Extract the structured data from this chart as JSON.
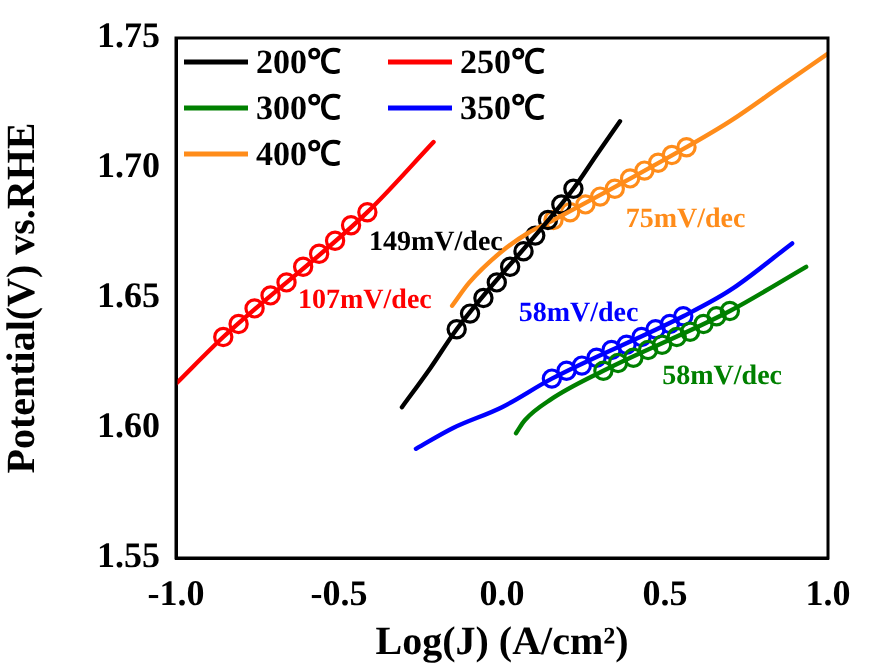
{
  "chart_data": {
    "type": "line",
    "xlabel": "Log(J) (A/cm²)",
    "ylabel": "Potential(V) vs.RHE",
    "xlim": [
      -1,
      1
    ],
    "ylim": [
      1.55,
      1.75
    ],
    "xticks": [
      {
        "value": -1,
        "label": "-1.0"
      },
      {
        "value": -0.5,
        "label": "-0.5"
      },
      {
        "value": 0,
        "label": "0.0"
      },
      {
        "value": 0.5,
        "label": "0.5"
      },
      {
        "value": 1,
        "label": "1.0"
      }
    ],
    "yticks": [
      {
        "value": 1.55,
        "label": "1.55"
      },
      {
        "value": 1.6,
        "label": "1.60"
      },
      {
        "value": 1.65,
        "label": "1.65"
      },
      {
        "value": 1.7,
        "label": "1.70"
      },
      {
        "value": 1.75,
        "label": "1.75"
      }
    ],
    "grid": false,
    "legend": "top left",
    "series": [
      {
        "name": "200℃",
        "marker": "none",
        "color": "#000000",
        "x": [
          -0.307,
          -0.22,
          -0.139,
          0.219,
          0.29,
          0.362
        ],
        "values": [
          1.608,
          1.623,
          1.638,
          1.692,
          1.705,
          1.718
        ]
      },
      {
        "name": "250℃",
        "marker": "none",
        "color": "#ff0000",
        "x": [
          -1,
          -0.855,
          -0.413,
          -0.21
        ],
        "values": [
          1.617,
          1.635,
          1.683,
          1.71
        ]
      },
      {
        "name": "300℃",
        "marker": "none",
        "color": "#008000",
        "x": [
          0.043,
          0.07,
          0.15,
          0.311,
          0.699,
          0.933
        ],
        "values": [
          1.598,
          1.603,
          1.611,
          1.622,
          1.645,
          1.662
        ]
      },
      {
        "name": "350℃",
        "marker": "none",
        "color": "#0000ff",
        "x": [
          -0.264,
          -0.15,
          0,
          0.153,
          0.556,
          0.7,
          0.89
        ],
        "values": [
          1.592,
          1.6,
          1.608,
          1.619,
          1.643,
          1.653,
          1.671
        ]
      },
      {
        "name": "400℃",
        "marker": "none",
        "color": "#ff8c1a",
        "x": [
          -0.153,
          -0.1,
          0,
          0.08,
          0.158,
          0.566,
          0.7,
          0.85,
          1
        ],
        "values": [
          1.647,
          1.656,
          1.668,
          1.675,
          1.68,
          1.708,
          1.718,
          1.731,
          1.744
        ]
      },
      {
        "name": "149mV/dec",
        "type": "scatter",
        "marker": "circle",
        "color": "#000000",
        "x": [
          -0.139,
          -0.098,
          -0.057,
          -0.016,
          0.025,
          0.066,
          0.102,
          0.141,
          0.182,
          0.219
        ],
        "values": [
          1.638,
          1.644,
          1.65,
          1.656,
          1.662,
          1.668,
          1.674,
          1.68,
          1.686,
          1.692
        ]
      },
      {
        "name": "107mV/dec",
        "type": "scatter",
        "marker": "circle",
        "color": "#ff0000",
        "x": [
          -0.855,
          -0.808,
          -0.759,
          -0.71,
          -0.661,
          -0.61,
          -0.561,
          -0.512,
          -0.463,
          -0.413
        ],
        "values": [
          1.635,
          1.64,
          1.646,
          1.651,
          1.656,
          1.662,
          1.667,
          1.672,
          1.678,
          1.683
        ]
      },
      {
        "name": "58mV/dec",
        "type": "scatter",
        "marker": "circle",
        "color": "#008000",
        "x": [
          0.311,
          0.356,
          0.403,
          0.448,
          0.491,
          0.536,
          0.577,
          0.618,
          0.658,
          0.699
        ],
        "values": [
          1.622,
          1.625,
          1.627,
          1.63,
          1.632,
          1.635,
          1.637,
          1.64,
          1.643,
          1.645
        ]
      },
      {
        "name": "58mV/dec",
        "type": "scatter",
        "marker": "circle",
        "color": "#0000ff",
        "x": [
          0.153,
          0.198,
          0.245,
          0.29,
          0.336,
          0.382,
          0.428,
          0.471,
          0.515,
          0.556
        ],
        "values": [
          1.619,
          1.622,
          1.624,
          1.627,
          1.63,
          1.632,
          1.635,
          1.638,
          1.64,
          1.643
        ]
      },
      {
        "name": "75mV/dec",
        "type": "scatter",
        "marker": "circle",
        "color": "#ff8c1a",
        "x": [
          0.158,
          0.209,
          0.256,
          0.301,
          0.346,
          0.393,
          0.437,
          0.479,
          0.521,
          0.566
        ],
        "values": [
          1.68,
          1.683,
          1.686,
          1.689,
          1.692,
          1.696,
          1.699,
          1.702,
          1.705,
          1.708
        ]
      }
    ]
  }
}
